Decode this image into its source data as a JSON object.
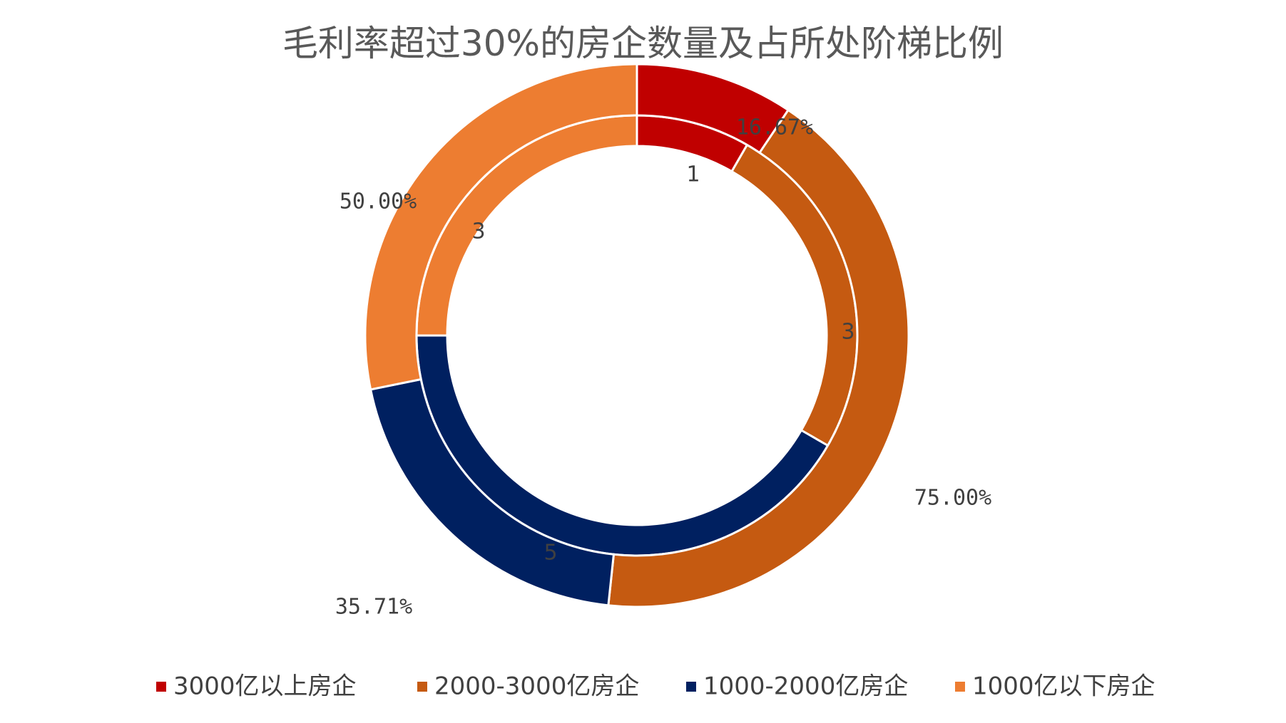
{
  "chart_data": {
    "type": "donut",
    "title": "毛利率超过30%的房企数量及占所处阶梯比例",
    "categories": [
      "3000亿以上房企",
      "2000-3000亿房企",
      "1000-2000亿房企",
      "1000亿以下房企"
    ],
    "colors": [
      "#C00000",
      "#C55A11",
      "#002060",
      "#ED7D31"
    ],
    "series": [
      {
        "ring": "inner",
        "values": [
          1,
          3,
          5,
          3
        ],
        "labels": [
          "1",
          "3",
          "5",
          "3"
        ]
      },
      {
        "ring": "outer",
        "values": [
          16.67,
          75.0,
          35.71,
          50.0
        ],
        "labels": [
          "16.67%",
          "75.00%",
          "35.71%",
          "50.00%"
        ]
      }
    ],
    "legend_position": "bottom"
  }
}
